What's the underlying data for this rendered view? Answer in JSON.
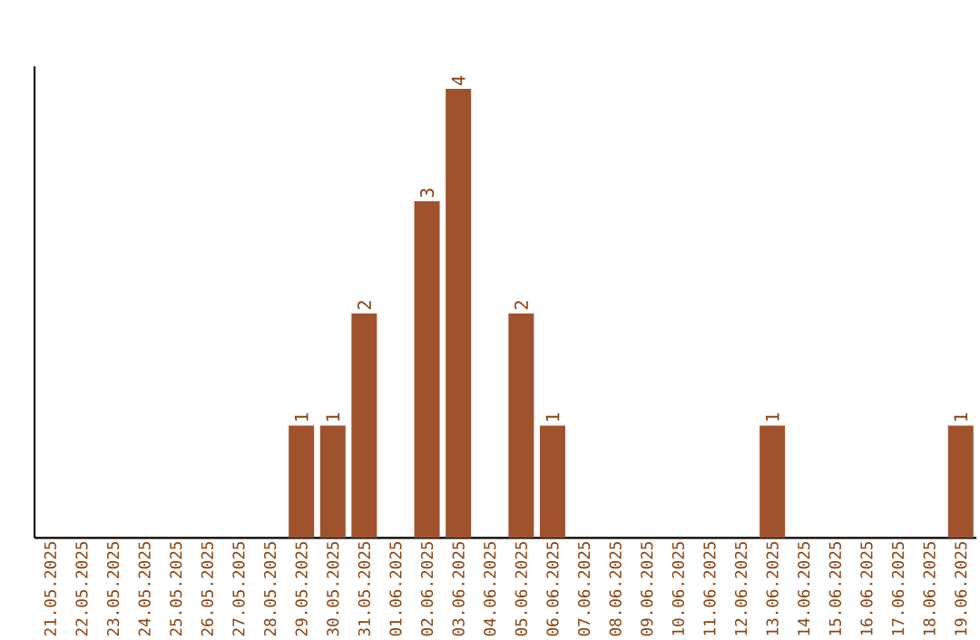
{
  "chart_data": {
    "type": "bar",
    "categories": [
      "21.05.2025",
      "22.05.2025",
      "23.05.2025",
      "24.05.2025",
      "25.05.2025",
      "26.05.2025",
      "27.05.2025",
      "28.05.2025",
      "29.05.2025",
      "30.05.2025",
      "31.05.2025",
      "01.06.2025",
      "02.06.2025",
      "03.06.2025",
      "04.06.2025",
      "05.06.2025",
      "06.06.2025",
      "07.06.2025",
      "08.06.2025",
      "09.06.2025",
      "10.06.2025",
      "11.06.2025",
      "12.06.2025",
      "13.06.2025",
      "14.06.2025",
      "15.06.2025",
      "16.06.2025",
      "17.06.2025",
      "18.06.2025",
      "19.06.2025"
    ],
    "values": [
      0,
      0,
      0,
      0,
      0,
      0,
      0,
      0,
      1,
      1,
      2,
      0,
      3,
      4,
      0,
      2,
      1,
      0,
      0,
      0,
      0,
      0,
      0,
      1,
      0,
      0,
      0,
      0,
      0,
      1
    ],
    "value_labels": [
      null,
      null,
      null,
      null,
      null,
      null,
      null,
      null,
      "1",
      "1",
      "2",
      null,
      "3",
      "4",
      null,
      "2",
      "1",
      null,
      null,
      null,
      null,
      null,
      null,
      "1",
      null,
      null,
      null,
      null,
      null,
      "1"
    ],
    "color": "#a0522d",
    "ylim": [
      0,
      4.2
    ],
    "tick_labels": "x"
  }
}
